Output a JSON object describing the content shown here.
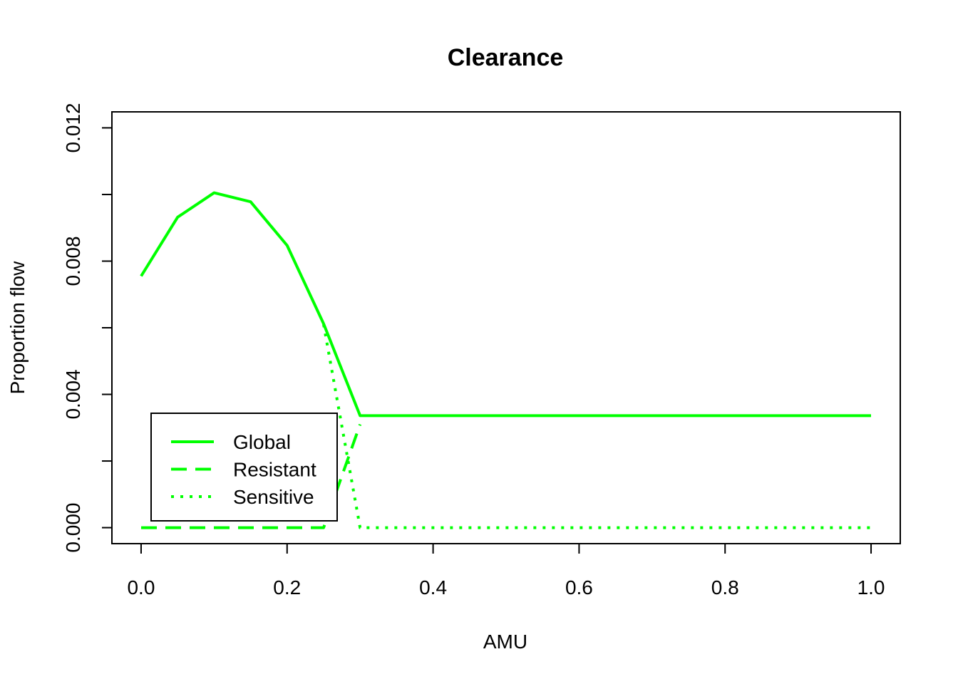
{
  "chart_data": {
    "type": "line",
    "title": "Clearance",
    "xlabel": "AMU",
    "ylabel": "Proportion flow",
    "xlim": [
      -0.04,
      1.04
    ],
    "ylim": [
      -0.00048,
      0.01248
    ],
    "x_ticks": [
      0.0,
      0.2,
      0.4,
      0.6,
      0.8,
      1.0
    ],
    "x_tick_labels": [
      "0.0",
      "0.2",
      "0.4",
      "0.6",
      "0.8",
      "1.0"
    ],
    "y_ticks": [
      0.0,
      0.002,
      0.004,
      0.006,
      0.008,
      0.01,
      0.012
    ],
    "y_tick_labels": [
      "0.000",
      "",
      "0.004",
      "",
      "0.008",
      "",
      "0.012"
    ],
    "grid": false,
    "legend": {
      "placement": "bottom-left"
    },
    "colors": {
      "series": "#00ff00",
      "axis": "#000000"
    },
    "series": [
      {
        "name": "Global",
        "style": "solid",
        "x": [
          0.0,
          0.05,
          0.1,
          0.15,
          0.2,
          0.25,
          0.3,
          1.0
        ],
        "y": [
          0.00755,
          0.00932,
          0.01005,
          0.00978,
          0.00847,
          0.00612,
          0.00336,
          0.00336
        ]
      },
      {
        "name": "Resistant",
        "style": "dashed",
        "x": [
          0.0,
          0.25,
          0.3
        ],
        "y": [
          0.0,
          0.0,
          0.0031
        ]
      },
      {
        "name": "Sensitive",
        "style": "dotted",
        "x": [
          0.25,
          0.3,
          1.0
        ],
        "y": [
          0.0061,
          0.0,
          0.0
        ]
      }
    ]
  }
}
